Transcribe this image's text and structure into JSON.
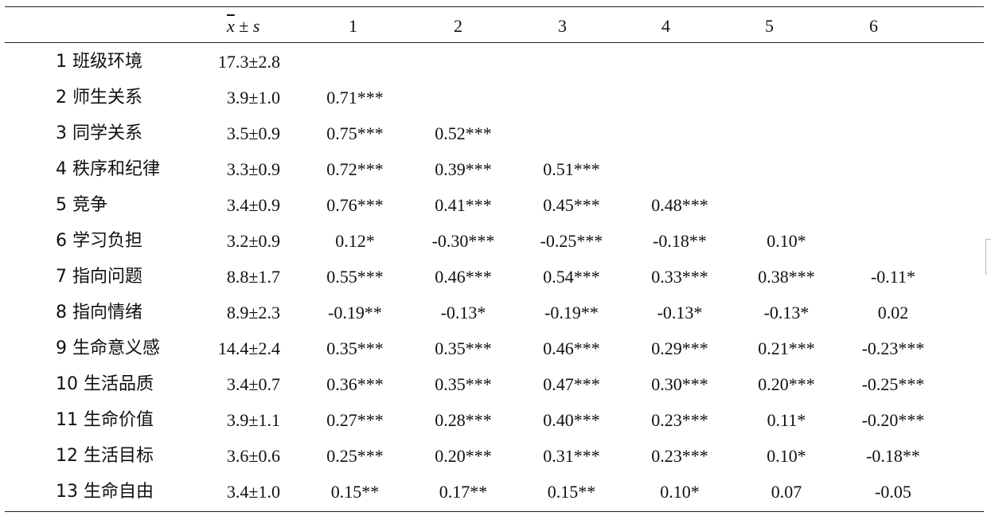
{
  "header": {
    "mean_sd_x": "x",
    "mean_sd_pm": "±",
    "mean_sd_s": "s",
    "columns": [
      "1",
      "2",
      "3",
      "4",
      "5",
      "6"
    ]
  },
  "rows": [
    {
      "label": "1 班级环境",
      "mean_sd": "17.3±2.8",
      "c": [
        "",
        "",
        "",
        "",
        "",
        ""
      ]
    },
    {
      "label": "2 师生关系",
      "mean_sd": "3.9±1.0",
      "c": [
        "0.71***",
        "",
        "",
        "",
        "",
        ""
      ]
    },
    {
      "label": "3 同学关系",
      "mean_sd": "3.5±0.9",
      "c": [
        "0.75***",
        "0.52***",
        "",
        "",
        "",
        ""
      ]
    },
    {
      "label": "4 秩序和纪律",
      "mean_sd": "3.3±0.9",
      "c": [
        "0.72***",
        "0.39***",
        "0.51***",
        "",
        "",
        ""
      ]
    },
    {
      "label": "5 竞争",
      "mean_sd": "3.4±0.9",
      "c": [
        "0.76***",
        "0.41***",
        "0.45***",
        "0.48***",
        "",
        ""
      ]
    },
    {
      "label": "6 学习负担",
      "mean_sd": "3.2±0.9",
      "c": [
        "0.12*",
        "-0.30***",
        "-0.25***",
        "-0.18**",
        "0.10*",
        ""
      ]
    },
    {
      "label": "7 指向问题",
      "mean_sd": "8.8±1.7",
      "c": [
        "0.55***",
        "0.46***",
        "0.54***",
        "0.33***",
        "0.38***",
        "-0.11*"
      ]
    },
    {
      "label": "8 指向情绪",
      "mean_sd": "8.9±2.3",
      "c": [
        "-0.19**",
        "-0.13*",
        "-0.19**",
        "-0.13*",
        "-0.13*",
        "0.02"
      ]
    },
    {
      "label": "9 生命意义感",
      "mean_sd": "14.4±2.4",
      "c": [
        "0.35***",
        "0.35***",
        "0.46***",
        "0.29***",
        "0.21***",
        "-0.23***"
      ]
    },
    {
      "label": "10 生活品质",
      "mean_sd": "3.4±0.7",
      "c": [
        "0.36***",
        "0.35***",
        "0.47***",
        "0.30***",
        "0.20***",
        "-0.25***"
      ]
    },
    {
      "label": "11 生命价值",
      "mean_sd": "3.9±1.1",
      "c": [
        "0.27***",
        "0.28***",
        "0.40***",
        "0.23***",
        "0.11*",
        "-0.20***"
      ]
    },
    {
      "label": "12 生活目标",
      "mean_sd": "3.6±0.6",
      "c": [
        "0.25***",
        "0.20***",
        "0.31***",
        "0.23***",
        "0.10*",
        "-0.18**"
      ]
    },
    {
      "label": "13 生命自由",
      "mean_sd": "3.4±1.0",
      "c": [
        "0.15**",
        "0.17**",
        "0.15**",
        "0.10*",
        "0.07",
        "-0.05"
      ]
    }
  ]
}
